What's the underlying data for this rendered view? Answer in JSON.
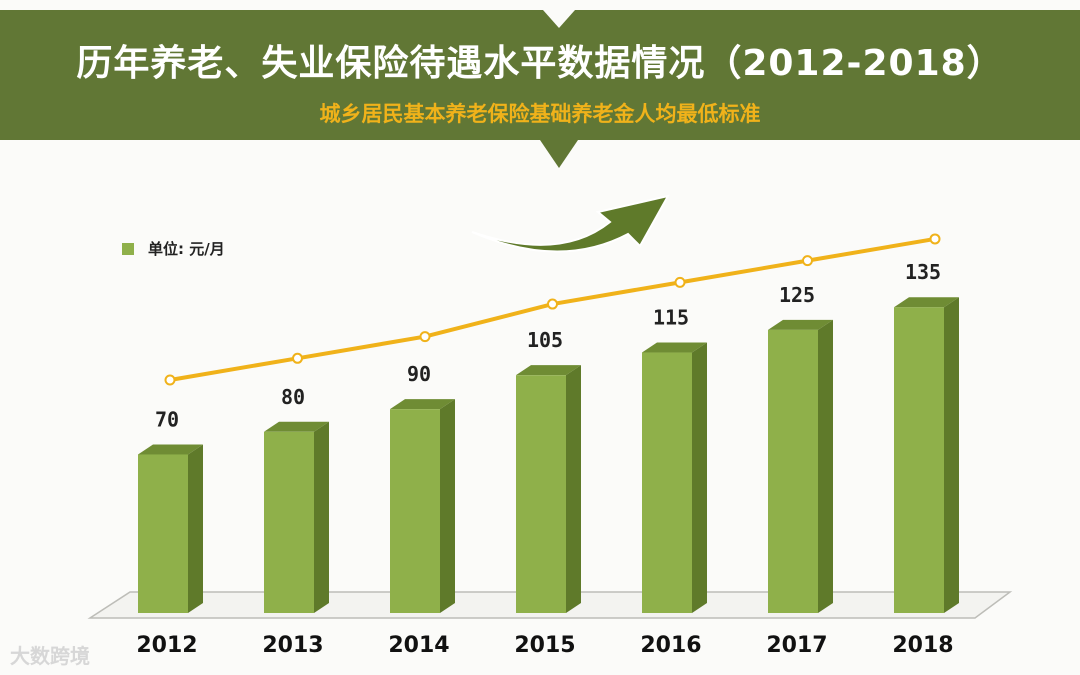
{
  "header": {
    "title": "历年养老、失业保险待遇水平数据情况（2012-2018）",
    "subtitle": "城乡居民基本养老保险基础养老金人均最低标准"
  },
  "watermark": "大数跨境",
  "chart_data": {
    "type": "bar",
    "title": "历年养老、失业保险待遇水平数据情况（2012-2018）",
    "subtitle": "城乡居民基本养老保险基础养老金人均最低标准",
    "unit_label": "单位: 元/月",
    "categories": [
      "2012",
      "2013",
      "2014",
      "2015",
      "2016",
      "2017",
      "2018"
    ],
    "values": [
      70,
      80,
      90,
      105,
      115,
      125,
      135
    ],
    "data_labels": [
      "70",
      "80",
      "90",
      "105",
      "115",
      "125",
      "135"
    ],
    "trend_line": true,
    "grid": false,
    "colors": {
      "bar": "#8fb04a",
      "bar_side": "#5f7a2a",
      "line": "#f0b21a",
      "banner": "#617735"
    }
  }
}
